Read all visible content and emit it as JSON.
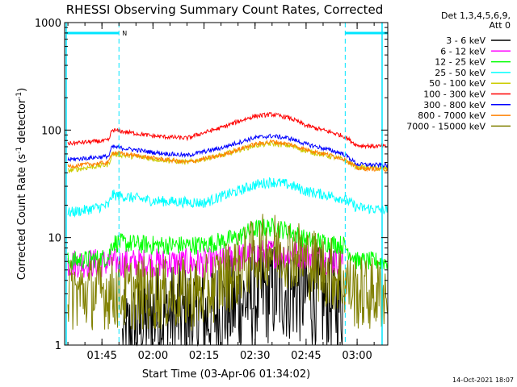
{
  "chart_data": {
    "type": "line",
    "title": "RHESSI Observing Summary Count Rates, Corrected",
    "xlabel": "Start Time (03-Apr-06 01:34:02)",
    "ylabel_main": "Corrected Count Rate (s",
    "ylabel_sup1": "-1",
    "ylabel_mid": " detector",
    "ylabel_sup2": "-1",
    "ylabel_end": ")",
    "y_scale": "log",
    "ylim": [
      1,
      1000
    ],
    "xlim": [
      "01:34:02",
      "03:09:00"
    ],
    "x_ticks": [
      "01:45",
      "02:00",
      "02:15",
      "02:30",
      "02:45",
      "03:00"
    ],
    "y_ticks": [
      "1",
      "10",
      "100",
      "1000"
    ],
    "legend_header": [
      "Det 1,3,4,5,6,9,",
      "Att 0"
    ],
    "legend_position": "top-right outside",
    "night_marker_label": "N",
    "timestamp": "14-Oct-2021 18:07",
    "data_gaps_cyan_vertical_lines": [
      "01:34:30",
      "03:07:20"
    ],
    "night_intervals": [
      [
        "01:34:30",
        "01:50:00"
      ],
      [
        "02:56:30",
        "03:09:00"
      ]
    ],
    "series": [
      {
        "name": "3 - 6 keV",
        "color": "#000000",
        "points": [
          [
            "01:51",
            1.0
          ],
          [
            "02:00",
            1.9
          ],
          [
            "02:15",
            1.8
          ],
          [
            "02:25",
            2.4
          ],
          [
            "02:30",
            2.8
          ],
          [
            "02:35",
            3.2
          ],
          [
            "02:40",
            3.3
          ],
          [
            "02:45",
            3.0
          ],
          [
            "02:50",
            2.6
          ],
          [
            "02:56",
            2.4
          ]
        ]
      },
      {
        "name": "6 - 12 keV",
        "color": "#ff00ff",
        "points": [
          [
            "01:35",
            5.8
          ],
          [
            "01:45",
            5.8
          ],
          [
            "02:00",
            5.8
          ],
          [
            "02:15",
            5.8
          ],
          [
            "02:25",
            6.4
          ],
          [
            "02:30",
            7.0
          ],
          [
            "02:35",
            7.2
          ],
          [
            "02:40",
            7.0
          ],
          [
            "02:45",
            6.8
          ],
          [
            "02:50",
            6.3
          ],
          [
            "02:56",
            6.0
          ]
        ]
      },
      {
        "name": "12 - 25 keV",
        "color": "#00ff00",
        "points": [
          [
            "01:35",
            6.0
          ],
          [
            "01:47",
            6.5
          ],
          [
            "01:48",
            9.0
          ],
          [
            "02:00",
            8.5
          ],
          [
            "02:15",
            8.5
          ],
          [
            "02:25",
            10.0
          ],
          [
            "02:30",
            12.0
          ],
          [
            "02:35",
            12.5
          ],
          [
            "02:40",
            11.5
          ],
          [
            "02:45",
            9.5
          ],
          [
            "02:56",
            8.5
          ],
          [
            "03:00",
            6.0
          ],
          [
            "03:09",
            6.0
          ]
        ]
      },
      {
        "name": "25 - 50 keV",
        "color": "#00ffff",
        "points": [
          [
            "01:35",
            17
          ],
          [
            "01:40",
            18
          ],
          [
            "01:47",
            20
          ],
          [
            "01:48",
            25
          ],
          [
            "02:00",
            22
          ],
          [
            "02:15",
            21
          ],
          [
            "02:25",
            27
          ],
          [
            "02:30",
            31
          ],
          [
            "02:35",
            33
          ],
          [
            "02:40",
            31
          ],
          [
            "02:45",
            27
          ],
          [
            "02:56",
            23
          ],
          [
            "03:00",
            19
          ],
          [
            "03:09",
            18
          ]
        ]
      },
      {
        "name": "50 - 100 keV",
        "color": "#cccc00",
        "points": [
          [
            "01:35",
            42
          ],
          [
            "01:47",
            48
          ],
          [
            "01:48",
            60
          ],
          [
            "02:00",
            54
          ],
          [
            "02:10",
            50
          ],
          [
            "02:20",
            58
          ],
          [
            "02:30",
            72
          ],
          [
            "02:35",
            75
          ],
          [
            "02:40",
            72
          ],
          [
            "02:45",
            64
          ],
          [
            "02:56",
            53
          ],
          [
            "03:00",
            45
          ],
          [
            "03:09",
            44
          ]
        ]
      },
      {
        "name": "100 - 300 keV",
        "color": "#ff0000",
        "points": [
          [
            "01:35",
            75
          ],
          [
            "01:47",
            80
          ],
          [
            "01:48",
            100
          ],
          [
            "02:00",
            88
          ],
          [
            "02:10",
            84
          ],
          [
            "02:20",
            105
          ],
          [
            "02:30",
            135
          ],
          [
            "02:35",
            140
          ],
          [
            "02:40",
            130
          ],
          [
            "02:45",
            110
          ],
          [
            "02:56",
            88
          ],
          [
            "03:00",
            72
          ],
          [
            "03:09",
            70
          ]
        ]
      },
      {
        "name": "300 - 800 keV",
        "color": "#0000ff",
        "points": [
          [
            "01:35",
            53
          ],
          [
            "01:47",
            57
          ],
          [
            "01:48",
            70
          ],
          [
            "02:00",
            62
          ],
          [
            "02:10",
            58
          ],
          [
            "02:20",
            68
          ],
          [
            "02:30",
            85
          ],
          [
            "02:35",
            88
          ],
          [
            "02:40",
            84
          ],
          [
            "02:45",
            74
          ],
          [
            "02:56",
            60
          ],
          [
            "03:00",
            48
          ],
          [
            "03:09",
            47
          ]
        ]
      },
      {
        "name": "800 - 7000 keV",
        "color": "#ff8000",
        "points": [
          [
            "01:35",
            46
          ],
          [
            "01:47",
            50
          ],
          [
            "01:48",
            62
          ],
          [
            "02:00",
            55
          ],
          [
            "02:10",
            50
          ],
          [
            "02:20",
            58
          ],
          [
            "02:30",
            74
          ],
          [
            "02:35",
            78
          ],
          [
            "02:40",
            74
          ],
          [
            "02:45",
            66
          ],
          [
            "02:56",
            54
          ],
          [
            "03:00",
            44
          ],
          [
            "03:09",
            43
          ]
        ]
      },
      {
        "name": "7000 - 15000 keV",
        "color": "#808000",
        "points": [
          [
            "01:35",
            3.0
          ],
          [
            "01:45",
            3.1
          ],
          [
            "02:00",
            3.0
          ],
          [
            "02:15",
            3.0
          ],
          [
            "02:25",
            5.0
          ],
          [
            "02:30",
            7.0
          ],
          [
            "02:35",
            8.0
          ],
          [
            "02:40",
            7.5
          ],
          [
            "02:45",
            6.0
          ],
          [
            "02:56",
            4.0
          ],
          [
            "03:00",
            3.0
          ],
          [
            "03:09",
            3.0
          ]
        ]
      }
    ]
  }
}
